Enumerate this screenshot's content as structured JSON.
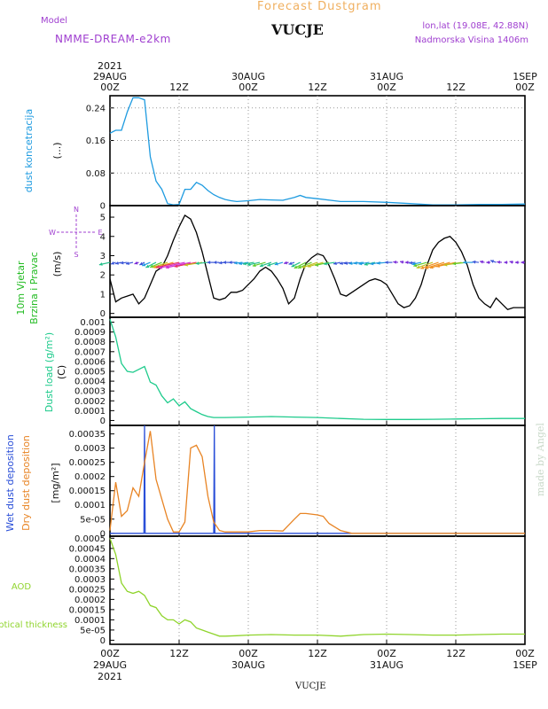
{
  "header": {
    "super_title": "Forecast Dustgram",
    "model_label": "Model",
    "model_name": "NMME-DREAM-e2km",
    "station": "VUCJE",
    "coords": "lon,lat (19.08E, 42.88N)",
    "elevation": "Nadmorska Visina 1406m"
  },
  "footer": {
    "station": "VUCJE"
  },
  "watermark": "made by Angel",
  "colors": {
    "concentration": "#1e9be0",
    "wind_label": "#22bb22",
    "load": "#1ecb8c",
    "wet": "#2a4fd8",
    "dry": "#e88424",
    "aod": "#8fd42c",
    "title": "#f0b060",
    "purple": "#a040d0"
  },
  "time_axis": {
    "ticks": [
      {
        "hour": 0,
        "top": [
          "2021",
          "29AUG",
          "00Z"
        ],
        "bottom": [
          "00Z",
          "29AUG",
          "2021"
        ]
      },
      {
        "hour": 12,
        "top": [
          "12Z"
        ],
        "bottom": [
          "12Z"
        ]
      },
      {
        "hour": 24,
        "top": [
          "30AUG",
          "00Z"
        ],
        "bottom": [
          "00Z",
          "30AUG"
        ]
      },
      {
        "hour": 36,
        "top": [
          "12Z"
        ],
        "bottom": [
          "12Z"
        ]
      },
      {
        "hour": 48,
        "top": [
          "31AUG",
          "00Z"
        ],
        "bottom": [
          "00Z",
          "31AUG"
        ]
      },
      {
        "hour": 60,
        "top": [
          "12Z"
        ],
        "bottom": [
          "12Z"
        ]
      },
      {
        "hour": 72,
        "top": [
          "1SEP",
          "00Z"
        ],
        "bottom": [
          "00Z",
          "1SEP"
        ]
      }
    ]
  },
  "chart_data": [
    {
      "id": "concentration",
      "type": "line",
      "ylabel": "dust koncetracija",
      "unit": "(...)",
      "ylim": [
        0,
        0.27
      ],
      "yticks": [
        0,
        0.08,
        0.16,
        0.24
      ],
      "ytick_labels": [
        "0",
        "0.08",
        "0.16",
        "0.24"
      ],
      "series": [
        {
          "color": "#1e9be0",
          "x": [
            0,
            1,
            2,
            3,
            4,
            5,
            6,
            7,
            8,
            9,
            10,
            11,
            12,
            13,
            14,
            15,
            16,
            17,
            18,
            19,
            20,
            21,
            22,
            24,
            26,
            28,
            30,
            32,
            33,
            34,
            36,
            40,
            44,
            48,
            52,
            56,
            60,
            64,
            68,
            72
          ],
          "y": [
            0.178,
            0.185,
            0.185,
            0.23,
            0.265,
            0.265,
            0.26,
            0.12,
            0.06,
            0.04,
            0.005,
            0.002,
            0.003,
            0.04,
            0.04,
            0.057,
            0.05,
            0.037,
            0.027,
            0.02,
            0.015,
            0.012,
            0.01,
            0.012,
            0.015,
            0.014,
            0.013,
            0.02,
            0.025,
            0.02,
            0.017,
            0.01,
            0.01,
            0.008,
            0.005,
            0.002,
            0.002,
            0.003,
            0.003,
            0.004
          ]
        }
      ]
    },
    {
      "id": "wind",
      "type": "line",
      "ylabel": "10m Vjetar",
      "ylabel2": "Brzina i Pravac",
      "unit": "(m/s)",
      "compass": {
        "n": "N",
        "s": "S",
        "e": "E",
        "w": "W"
      },
      "ylim": [
        -0.2,
        5.6
      ],
      "yticks": [
        0,
        1,
        2,
        3,
        4,
        5
      ],
      "ytick_labels": [
        "0",
        "1",
        "2",
        "3",
        "4",
        "5"
      ],
      "series": [
        {
          "color": "#000000",
          "x": [
            0,
            1,
            2,
            3,
            4,
            5,
            6,
            7,
            8,
            9,
            10,
            11,
            12,
            13,
            14,
            15,
            16,
            17,
            18,
            19,
            20,
            21,
            22,
            23,
            24,
            25,
            26,
            27,
            28,
            29,
            30,
            31,
            32,
            33,
            34,
            35,
            36,
            37,
            38,
            39,
            40,
            41,
            42,
            43,
            44,
            45,
            46,
            47,
            48,
            49,
            50,
            51,
            52,
            53,
            54,
            55,
            56,
            57,
            58,
            59,
            60,
            61,
            62,
            63,
            64,
            65,
            66,
            67,
            68,
            69,
            70,
            71,
            72
          ],
          "y": [
            1.8,
            0.6,
            0.8,
            0.9,
            1.0,
            0.5,
            0.8,
            1.5,
            2.2,
            2.4,
            3.0,
            3.8,
            4.5,
            5.1,
            4.9,
            4.2,
            3.2,
            2.0,
            0.8,
            0.7,
            0.8,
            1.1,
            1.1,
            1.2,
            1.5,
            1.8,
            2.2,
            2.4,
            2.2,
            1.8,
            1.3,
            0.5,
            0.8,
            1.8,
            2.6,
            2.9,
            3.1,
            3.0,
            2.5,
            1.8,
            1.0,
            0.9,
            1.1,
            1.3,
            1.5,
            1.7,
            1.8,
            1.7,
            1.5,
            1.0,
            0.5,
            0.3,
            0.4,
            0.8,
            1.5,
            2.5,
            3.3,
            3.7,
            3.9,
            4.0,
            3.7,
            3.2,
            2.5,
            1.5,
            0.8,
            0.5,
            0.3,
            0.8,
            0.5,
            0.2,
            0.3,
            0.3,
            0.3
          ]
        }
      ],
      "vectors": {
        "x": [
          0,
          1,
          2,
          3,
          4,
          5,
          6,
          7,
          8,
          9,
          10,
          11,
          12,
          13,
          14,
          15,
          16,
          17,
          18,
          19,
          20,
          21,
          22,
          23,
          24,
          25,
          26,
          27,
          28,
          29,
          30,
          31,
          32,
          33,
          34,
          35,
          36,
          37,
          38,
          39,
          40,
          41,
          42,
          43,
          44,
          45,
          46,
          47,
          48,
          49,
          50,
          51,
          52,
          53,
          54,
          55,
          56,
          57,
          58,
          59,
          60,
          61,
          62,
          63,
          64,
          65,
          66,
          67,
          68,
          69,
          70,
          71,
          72
        ],
        "speed": [
          1.8,
          0.6,
          0.8,
          0.9,
          1.0,
          0.5,
          0.8,
          1.5,
          2.2,
          2.4,
          3.0,
          3.8,
          4.5,
          5.1,
          4.9,
          4.2,
          3.2,
          2.0,
          0.8,
          0.7,
          0.8,
          1.1,
          1.1,
          1.2,
          1.5,
          1.8,
          2.2,
          2.4,
          2.2,
          1.8,
          1.3,
          0.5,
          0.8,
          1.8,
          2.6,
          2.9,
          3.1,
          3.0,
          2.5,
          1.8,
          1.0,
          0.9,
          1.1,
          1.3,
          1.5,
          1.7,
          1.8,
          1.7,
          1.5,
          1.0,
          0.5,
          0.3,
          0.4,
          0.8,
          1.5,
          2.5,
          3.3,
          3.7,
          3.9,
          4.0,
          3.7,
          3.2,
          2.5,
          1.5,
          0.8,
          0.5,
          0.3,
          0.8,
          0.5,
          0.2,
          0.3,
          0.3,
          0.3
        ],
        "direction_deg": [
          250,
          240,
          250,
          260,
          250,
          240,
          230,
          235,
          230,
          235,
          240,
          245,
          250,
          250,
          250,
          252,
          255,
          260,
          270,
          270,
          260,
          270,
          270,
          260,
          255,
          255,
          250,
          245,
          240,
          240,
          245,
          250,
          240,
          230,
          230,
          235,
          240,
          245,
          250,
          255,
          250,
          250,
          255,
          255,
          260,
          255,
          250,
          255,
          260,
          270,
          280,
          290,
          270,
          260,
          250,
          245,
          240,
          240,
          242,
          245,
          250,
          255,
          260,
          270,
          280,
          290,
          270,
          300,
          280,
          270,
          290,
          270,
          270
        ]
      }
    },
    {
      "id": "load",
      "type": "line",
      "ylabel": "Dust load (g/m²)",
      "unit": "(C)",
      "ylim": [
        -5e-05,
        0.00105
      ],
      "yticks": [
        0,
        0.0001,
        0.0002,
        0.0003,
        0.0004,
        0.0005,
        0.0006,
        0.0007,
        0.0008,
        0.0009,
        0.001
      ],
      "ytick_labels": [
        "0",
        "0.0001",
        "0.0002",
        "0.0003",
        "0.0004",
        "0.0005",
        "0.0006",
        "0.0007",
        "0.0008",
        "0.0009",
        "0.001"
      ],
      "series": [
        {
          "color": "#1ecb8c",
          "x": [
            0,
            1,
            2,
            3,
            4,
            5,
            6,
            7,
            8,
            9,
            10,
            11,
            12,
            13,
            14,
            15,
            16,
            17,
            18,
            20,
            24,
            28,
            32,
            36,
            40,
            44,
            48,
            52,
            56,
            60,
            64,
            68,
            72
          ],
          "y": [
            0.00103,
            0.00085,
            0.00058,
            0.0005,
            0.00049,
            0.00052,
            0.00055,
            0.00039,
            0.00036,
            0.00025,
            0.00018,
            0.00022,
            0.00015,
            0.00019,
            0.00012,
            9e-05,
            6e-05,
            4e-05,
            3e-05,
            3e-05,
            3.5e-05,
            4e-05,
            3.5e-05,
            3e-05,
            2e-05,
            1.2e-05,
            1e-05,
            1e-05,
            1.2e-05,
            1.5e-05,
            1.8e-05,
            2e-05,
            2e-05
          ]
        }
      ]
    },
    {
      "id": "deposition",
      "type": "line",
      "ylabel": "Wet dust deposition",
      "ylabel2": "Dry dust deposition",
      "unit": "[mg/m²]",
      "ylim": [
        -1e-05,
        0.00038
      ],
      "yticks": [
        0,
        5e-05,
        0.0001,
        0.00015,
        0.0002,
        0.00025,
        0.0003,
        0.00035
      ],
      "ytick_labels": [
        "0",
        "5e-05",
        "0.0001",
        "0.00015",
        "0.0002",
        "0.00025",
        "0.0003",
        "0.00035"
      ],
      "series": [
        {
          "color": "#2a4fd8",
          "x": [
            0,
            5.9,
            6,
            6.1,
            18,
            18.1,
            18.2,
            72
          ],
          "y": [
            0,
            0,
            0.00038,
            0,
            0,
            0.00038,
            0,
            0
          ]
        },
        {
          "color": "#e88424",
          "x": [
            0,
            1,
            2,
            3,
            4,
            5,
            6,
            7,
            8,
            9,
            10,
            11,
            12,
            13,
            14,
            15,
            16,
            17,
            18,
            19,
            20,
            21,
            22,
            24,
            26,
            28,
            30,
            32,
            33,
            34,
            36,
            37,
            38,
            40,
            42,
            44,
            46,
            48,
            56,
            64,
            72
          ],
          "y": [
            1e-05,
            0.00018,
            6e-05,
            8e-05,
            0.00016,
            0.00013,
            0.00025,
            0.00036,
            0.00019,
            0.00012,
            5e-05,
            5e-06,
            5e-06,
            4e-05,
            0.0003,
            0.00031,
            0.00027,
            0.00013,
            4e-05,
            1e-05,
            5e-06,
            5e-06,
            5e-06,
            5e-06,
            1e-05,
            1e-05,
            8e-06,
            5e-05,
            7e-05,
            7e-05,
            6.5e-05,
            6e-05,
            3.5e-05,
            1e-05,
            0,
            0,
            0,
            0,
            0,
            0,
            0
          ]
        }
      ]
    },
    {
      "id": "aod",
      "type": "line",
      "ylabel": "AOD",
      "ylabel2": "optical thickness",
      "ylim": [
        -2e-05,
        0.00051
      ],
      "yticks": [
        0,
        5e-05,
        0.0001,
        0.00015,
        0.0002,
        0.00025,
        0.0003,
        0.00035,
        0.0004,
        0.00045,
        0.0005
      ],
      "ytick_labels": [
        "0",
        "5e-05",
        "0.0001",
        "0.00015",
        "0.0002",
        "0.00025",
        "0.0003",
        "0.00035",
        "0.0004",
        "0.00045",
        "0.0005"
      ],
      "series": [
        {
          "color": "#8fd42c",
          "x": [
            0,
            1,
            2,
            3,
            4,
            5,
            6,
            7,
            8,
            9,
            10,
            11,
            12,
            13,
            14,
            15,
            16,
            17,
            18,
            19,
            20,
            22,
            24,
            28,
            32,
            36,
            40,
            44,
            48,
            52,
            56,
            60,
            64,
            68,
            72
          ],
          "y": [
            0.0005,
            0.00042,
            0.00028,
            0.00024,
            0.00023,
            0.00024,
            0.00022,
            0.00017,
            0.00016,
            0.00012,
            0.0001,
            0.0001,
            8e-05,
            0.0001,
            9e-05,
            6e-05,
            5e-05,
            4e-05,
            3e-05,
            2e-05,
            2e-05,
            2.2e-05,
            2.5e-05,
            2.8e-05,
            2.5e-05,
            2.5e-05,
            2e-05,
            2.8e-05,
            3e-05,
            2.8e-05,
            2.5e-05,
            2.5e-05,
            2.8e-05,
            3e-05,
            3e-05
          ]
        }
      ]
    }
  ]
}
